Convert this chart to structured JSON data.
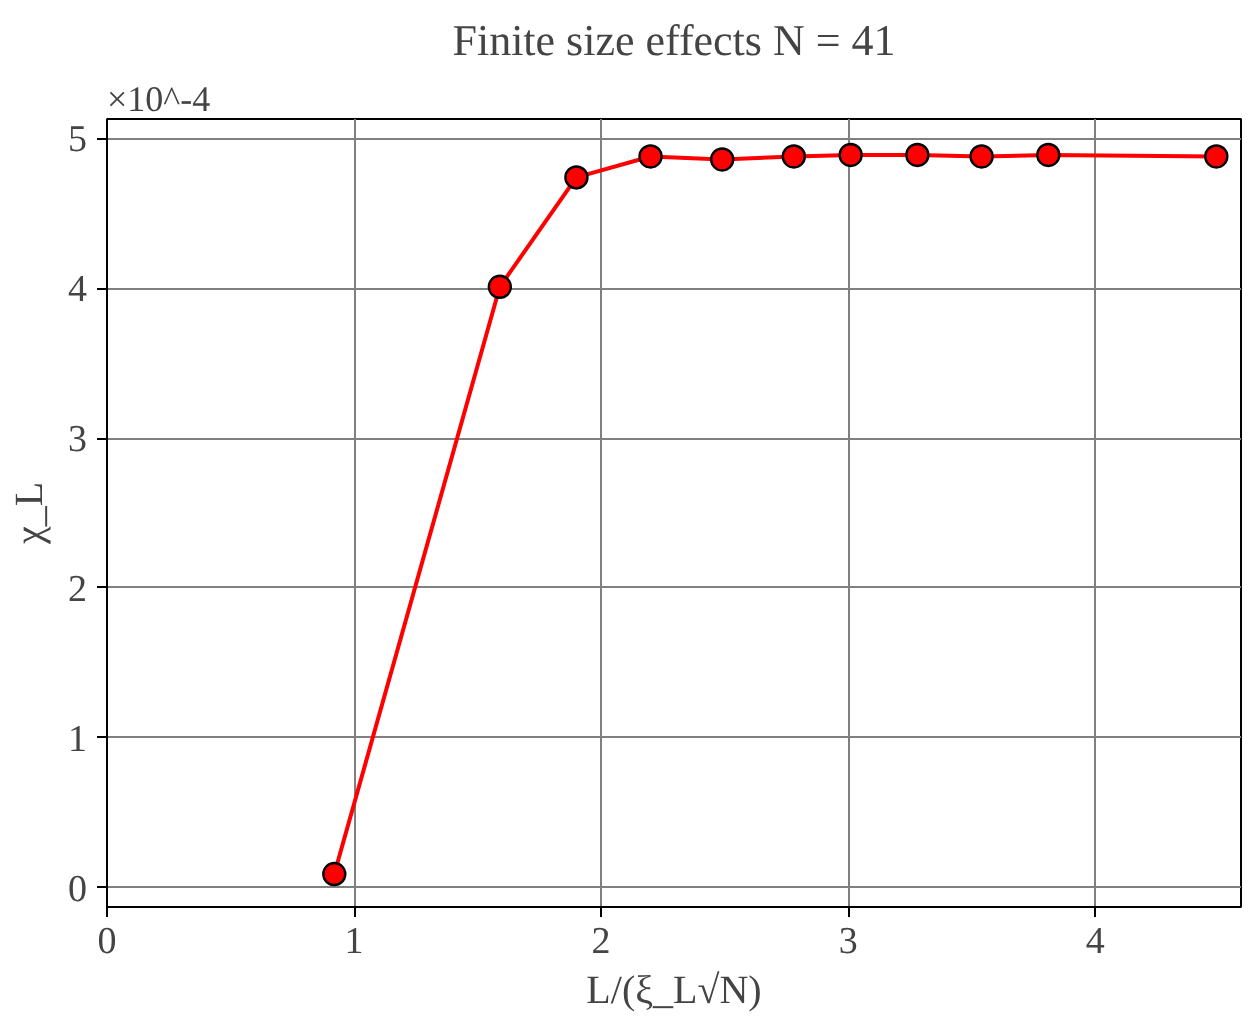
{
  "chart_data": {
    "type": "line",
    "title": "Finite size effects N = 41",
    "xlabel": "L/(ξ_L√N)",
    "ylabel": "χ_L",
    "annotations": [
      "×10^-4"
    ],
    "x": [
      0.92,
      1.59,
      1.9,
      2.2,
      2.49,
      2.78,
      3.01,
      3.28,
      3.54,
      3.81,
      4.49
    ],
    "series": [
      {
        "color": "#ff0000",
        "values": [
          0.09,
          4.01,
          4.74,
          4.88,
          4.86,
          4.88,
          4.89,
          4.89,
          4.88,
          4.89,
          4.88
        ]
      }
    ],
    "xlim": [
      0,
      4.59
    ],
    "ylim": [
      -0.13,
      5.13
    ],
    "xticks": [
      0,
      1,
      2,
      3,
      4
    ],
    "yticks": [
      0,
      1,
      2,
      3,
      4,
      5
    ],
    "grid": true,
    "marker": "circle",
    "line_style": "solid"
  }
}
